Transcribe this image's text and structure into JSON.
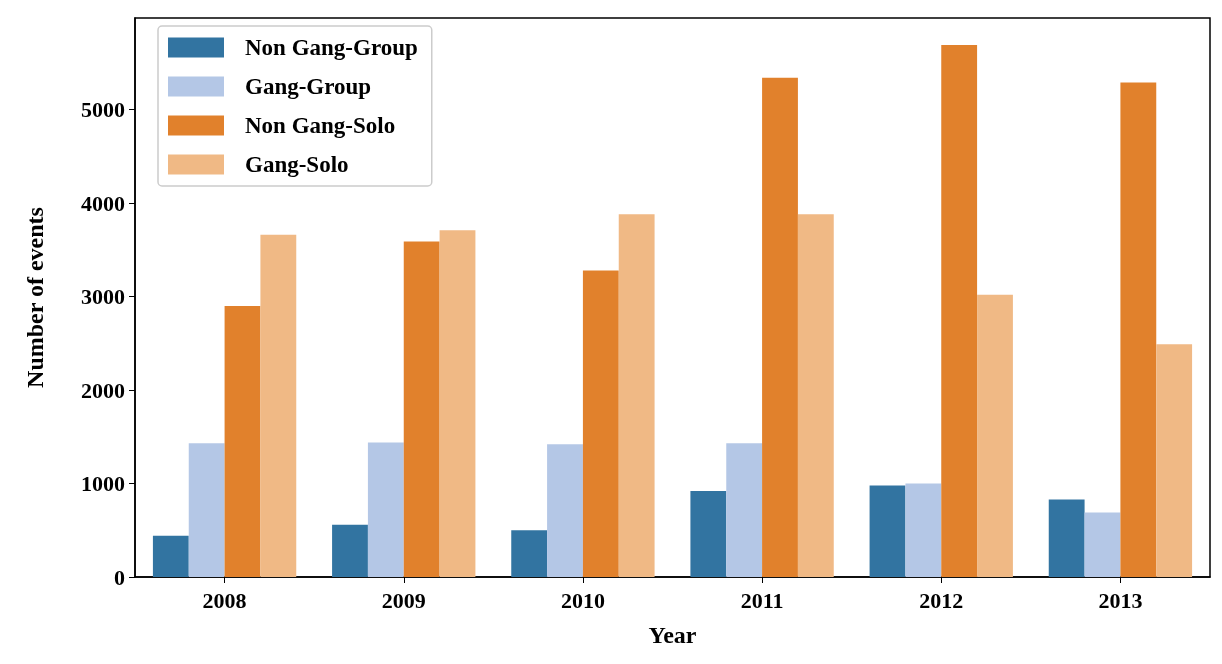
{
  "chart_data": {
    "type": "bar",
    "xlabel": "Year",
    "ylabel": "Number of events",
    "categories": [
      "2008",
      "2009",
      "2010",
      "2011",
      "2012",
      "2013"
    ],
    "series": [
      {
        "name": "Non Gang-Group",
        "color": "#3274a1",
        "values": [
          440,
          560,
          500,
          920,
          980,
          830
        ]
      },
      {
        "name": "Gang-Group",
        "color": "#b4c7e6",
        "values": [
          1430,
          1440,
          1420,
          1430,
          1000,
          690
        ]
      },
      {
        "name": "Non Gang-Solo",
        "color": "#e1812c",
        "values": [
          2900,
          3590,
          3280,
          5340,
          5690,
          5290
        ]
      },
      {
        "name": "Gang-Solo",
        "color": "#f0b985",
        "values": [
          3660,
          3710,
          3880,
          3880,
          3020,
          2490
        ]
      }
    ],
    "ylim": [
      0,
      5980
    ],
    "yticks": [
      0,
      1000,
      2000,
      3000,
      4000,
      5000
    ],
    "grid": false,
    "legend": "top left"
  }
}
